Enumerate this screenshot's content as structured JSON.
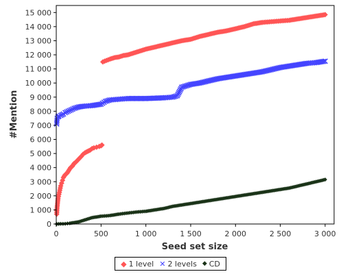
{
  "chart_data": {
    "type": "scatter",
    "xlabel": "Seed set size",
    "ylabel": "#Mention",
    "xlim": [
      0,
      3100
    ],
    "ylim": [
      0,
      15500
    ],
    "x_ticks": [
      {
        "value": 0,
        "label": "0"
      },
      {
        "value": 500,
        "label": "500"
      },
      {
        "value": 1000,
        "label": "1 000"
      },
      {
        "value": 1500,
        "label": "1 500"
      },
      {
        "value": 2000,
        "label": "2 000"
      },
      {
        "value": 2500,
        "label": "2 500"
      },
      {
        "value": 3000,
        "label": "3 000"
      }
    ],
    "y_ticks": [
      {
        "value": 0,
        "label": "0"
      },
      {
        "value": 1000,
        "label": "1 000"
      },
      {
        "value": 2000,
        "label": "2 000"
      },
      {
        "value": 3000,
        "label": "3 000"
      },
      {
        "value": 4000,
        "label": "4 000"
      },
      {
        "value": 5000,
        "label": "5 000"
      },
      {
        "value": 6000,
        "label": "6 000"
      },
      {
        "value": 7000,
        "label": "7 000"
      },
      {
        "value": 8000,
        "label": "8 000"
      },
      {
        "value": 9000,
        "label": "9 000"
      },
      {
        "value": 10000,
        "label": "10 000"
      },
      {
        "value": 11000,
        "label": "11 000"
      },
      {
        "value": 12000,
        "label": "12 000"
      },
      {
        "value": 13000,
        "label": "13 000"
      },
      {
        "value": 14000,
        "label": "14 000"
      },
      {
        "value": 15000,
        "label": "15 000"
      }
    ],
    "grid": false,
    "legend_position": "bottom",
    "series": [
      {
        "name": "1 level",
        "marker": "diamond",
        "color": "#ff5555",
        "x": [
          5,
          10,
          20,
          30,
          40,
          50,
          60,
          70,
          80,
          100,
          120,
          140,
          160,
          180,
          200,
          220,
          250,
          280,
          300,
          320,
          350,
          380,
          400,
          420,
          450,
          480,
          500,
          510,
          520,
          560,
          600,
          650,
          700,
          750,
          800,
          850,
          900,
          950,
          1000,
          1100,
          1200,
          1300,
          1400,
          1500,
          1550,
          1600,
          1700,
          1800,
          1900,
          2000,
          2100,
          2200,
          2300,
          2400,
          2500,
          2600,
          2700,
          2800,
          2900,
          3000
        ],
        "y": [
          700,
          1200,
          1800,
          2100,
          2400,
          2700,
          2900,
          3100,
          3300,
          3500,
          3600,
          3800,
          4000,
          4100,
          4300,
          4400,
          4600,
          4800,
          4950,
          5050,
          5150,
          5250,
          5350,
          5400,
          5450,
          5500,
          5550,
          5600,
          11500,
          11600,
          11700,
          11800,
          11850,
          11950,
          12000,
          12100,
          12200,
          12300,
          12400,
          12550,
          12700,
          12850,
          13000,
          13100,
          13200,
          13300,
          13450,
          13600,
          13700,
          13850,
          14000,
          14200,
          14300,
          14350,
          14400,
          14450,
          14550,
          14650,
          14750,
          14850
        ]
      },
      {
        "name": "2 levels",
        "marker": "x",
        "color": "#4444ff",
        "x": [
          5,
          10,
          20,
          30,
          50,
          80,
          100,
          150,
          200,
          250,
          300,
          400,
          500,
          550,
          600,
          700,
          800,
          1000,
          1200,
          1300,
          1350,
          1400,
          1450,
          1500,
          1600,
          1700,
          1800,
          1900,
          2000,
          2100,
          2200,
          2300,
          2400,
          2500,
          2600,
          2700,
          2800,
          2900,
          3000
        ],
        "y": [
          7100,
          7500,
          7600,
          7650,
          7700,
          7800,
          7900,
          8050,
          8200,
          8300,
          8350,
          8400,
          8500,
          8700,
          8800,
          8850,
          8900,
          8900,
          8950,
          9000,
          9100,
          9700,
          9800,
          9900,
          10000,
          10150,
          10300,
          10400,
          10500,
          10600,
          10700,
          10800,
          10950,
          11100,
          11200,
          11300,
          11400,
          11450,
          11550
        ]
      },
      {
        "name": "CD",
        "marker": "diamond-small",
        "color": "#1a3318",
        "x": [
          5,
          50,
          100,
          150,
          200,
          250,
          300,
          350,
          400,
          450,
          500,
          600,
          700,
          800,
          900,
          1000,
          1100,
          1200,
          1300,
          1400,
          1500,
          1600,
          1700,
          1800,
          1900,
          2000,
          2100,
          2200,
          2300,
          2400,
          2500,
          2600,
          2700,
          2800,
          2900,
          3000
        ],
        "y": [
          0,
          10,
          20,
          50,
          100,
          150,
          250,
          350,
          450,
          500,
          550,
          600,
          700,
          780,
          850,
          900,
          1000,
          1100,
          1250,
          1350,
          1450,
          1550,
          1650,
          1750,
          1850,
          1950,
          2050,
          2150,
          2250,
          2350,
          2450,
          2550,
          2700,
          2850,
          3000,
          3150
        ]
      }
    ]
  }
}
